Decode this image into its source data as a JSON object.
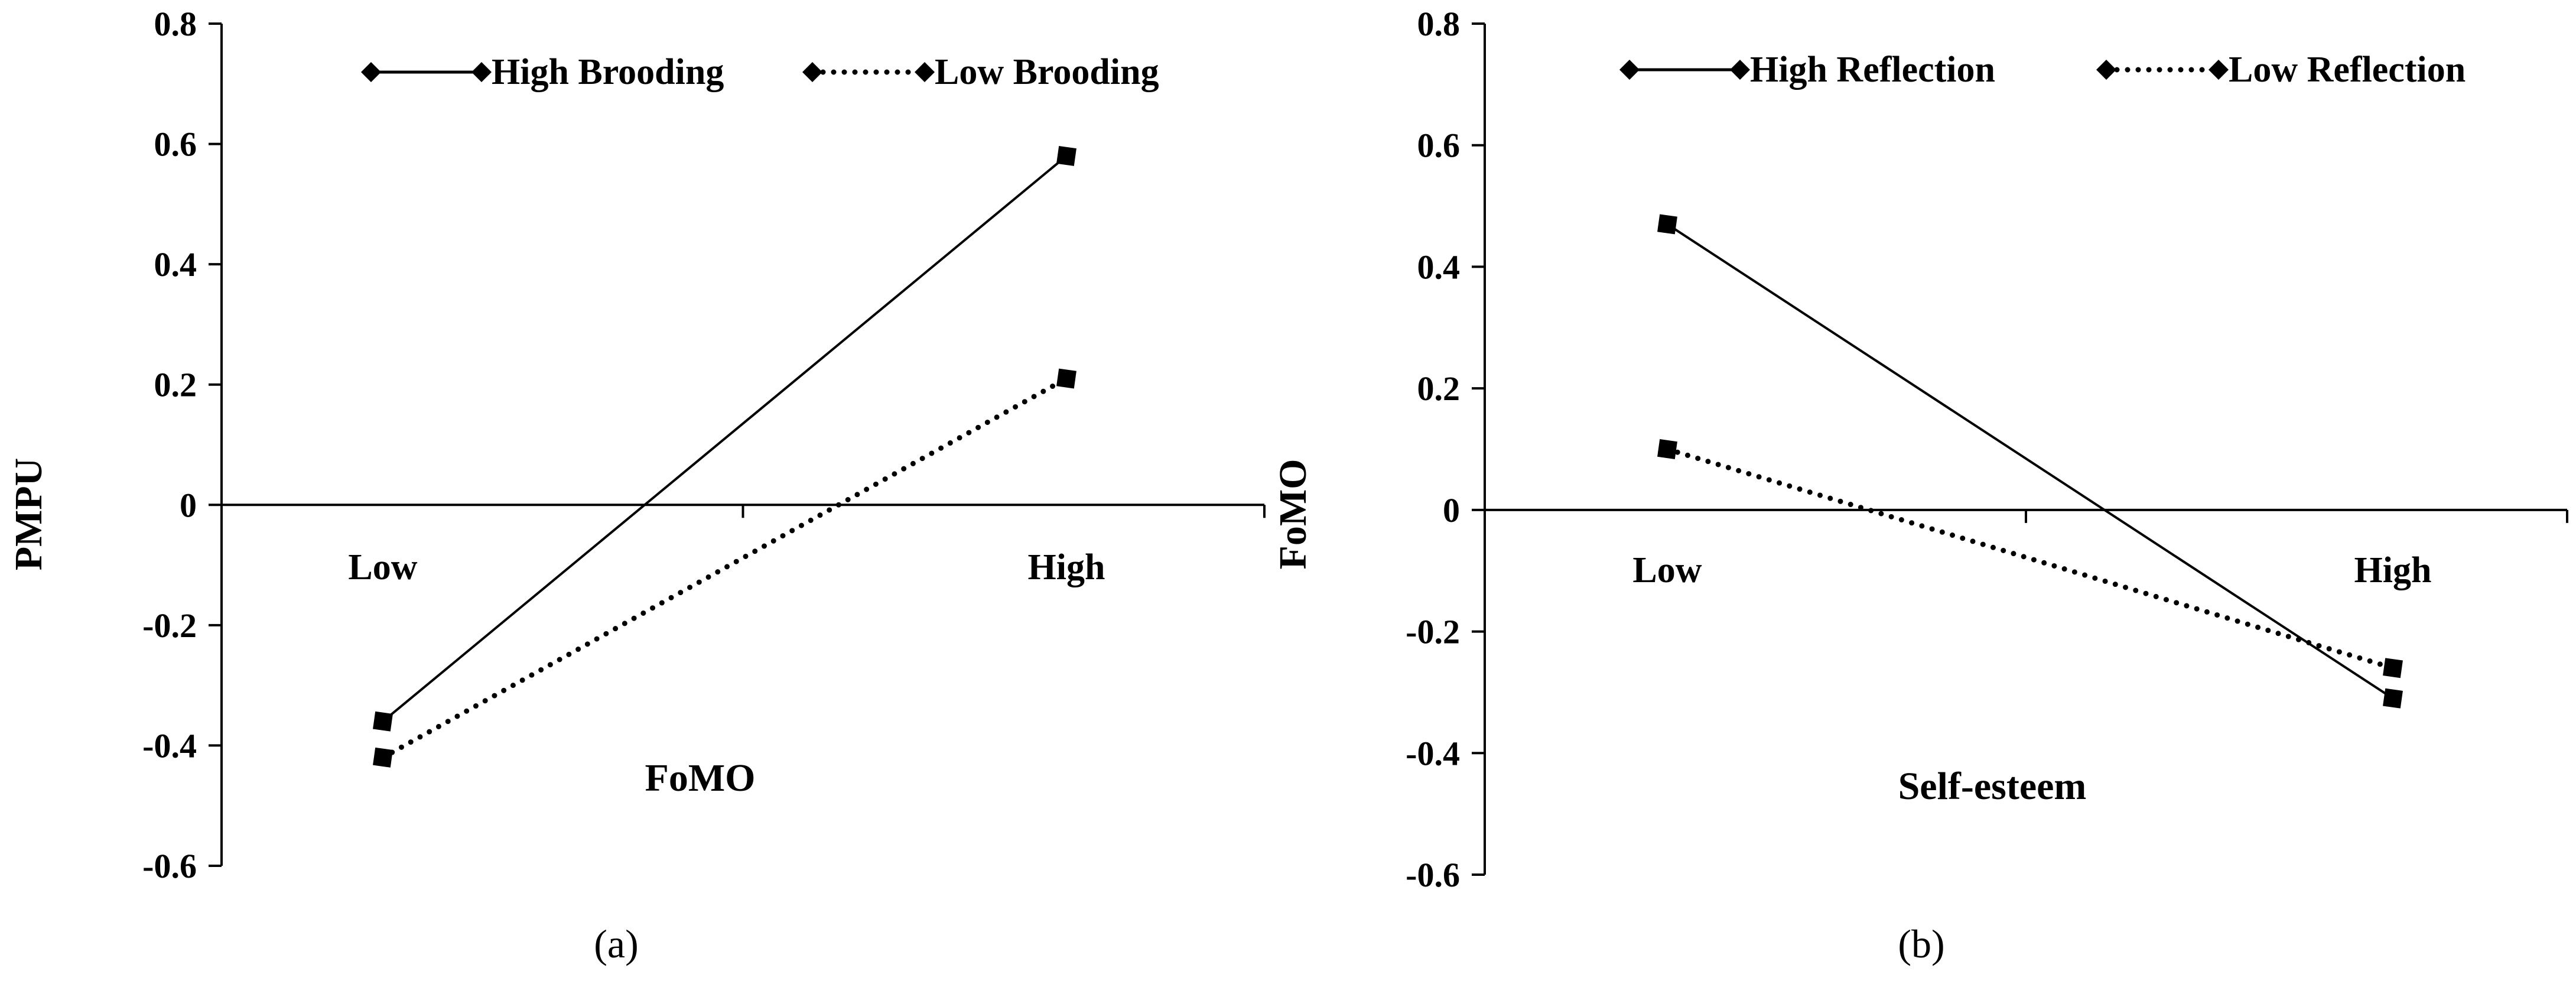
{
  "chart_data": [
    {
      "id": "a",
      "type": "line",
      "caption": "(a)",
      "xlabel": "FoMO",
      "ylabel": "PMPU",
      "categories": [
        "Low",
        "High"
      ],
      "ylim": [
        -0.6,
        0.8
      ],
      "yticks": [
        0.8,
        0.6,
        0.4,
        0.2,
        0,
        -0.2,
        -0.4,
        -0.6
      ],
      "ytick_labels": [
        "0.8",
        "0.6",
        "0.4",
        "0.2",
        "0",
        "-0.2",
        "-0.4",
        "-0.6"
      ],
      "legend_position": "top",
      "series": [
        {
          "name": "High Brooding",
          "style": "solid",
          "values": [
            -0.36,
            0.58
          ]
        },
        {
          "name": "Low Brooding",
          "style": "dotted",
          "values": [
            -0.42,
            0.21
          ]
        }
      ]
    },
    {
      "id": "b",
      "type": "line",
      "caption": "(b)",
      "xlabel": "Self-esteem",
      "ylabel": "FoMO",
      "categories": [
        "Low",
        "High"
      ],
      "ylim": [
        -0.6,
        0.8
      ],
      "yticks": [
        0.8,
        0.6,
        0.4,
        0.2,
        0,
        -0.2,
        -0.4,
        -0.6
      ],
      "ytick_labels": [
        "0.8",
        "0.6",
        "0.4",
        "0.2",
        "0",
        "-0.2",
        "-0.4",
        "-0.6"
      ],
      "legend_position": "top",
      "series": [
        {
          "name": "High Reflection",
          "style": "solid",
          "values": [
            0.47,
            -0.31
          ]
        },
        {
          "name": "Low Reflection",
          "style": "dotted",
          "values": [
            0.1,
            -0.26
          ]
        }
      ]
    }
  ]
}
